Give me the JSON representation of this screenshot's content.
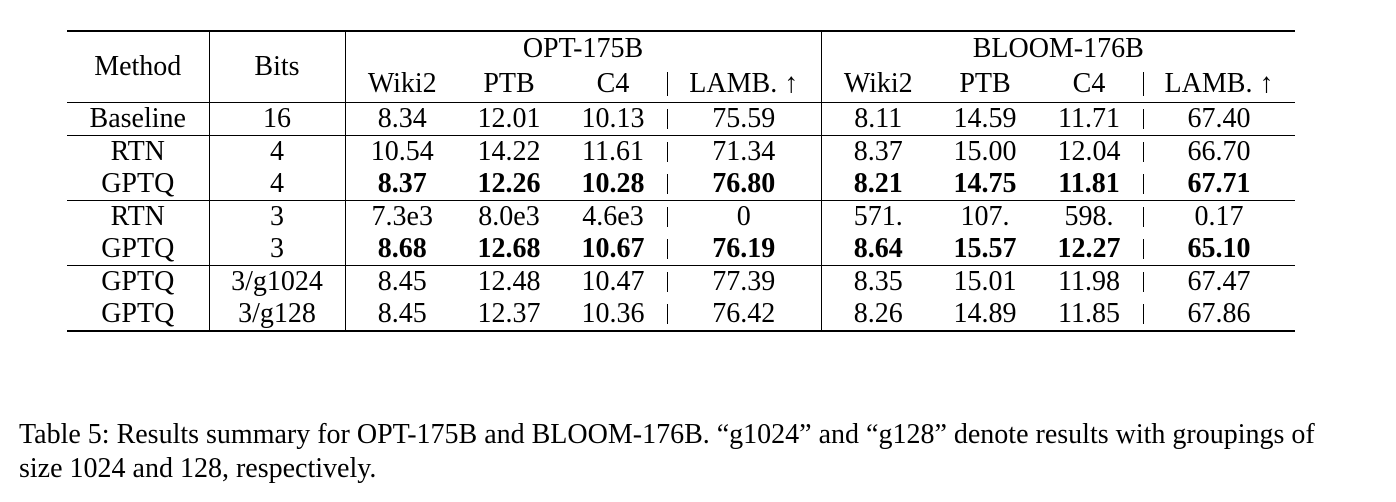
{
  "table": {
    "header": {
      "method": "Method",
      "bits": "Bits",
      "group_opt": "OPT-175B",
      "group_bloom": "BLOOM-176B",
      "cols": [
        "Wiki2",
        "PTB",
        "C4",
        "LAMB. ↑",
        "Wiki2",
        "PTB",
        "C4",
        "LAMB. ↑"
      ]
    },
    "groups": [
      [
        {
          "method": "Baseline",
          "bits": "16",
          "values": [
            "8.34",
            "12.01",
            "10.13",
            "75.59",
            "8.11",
            "14.59",
            "11.71",
            "67.40"
          ]
        }
      ],
      [
        {
          "method": "RTN",
          "bits": "4",
          "values": [
            "10.54",
            "14.22",
            "11.61",
            "71.34",
            "8.37",
            "15.00",
            "12.04",
            "66.70"
          ]
        },
        {
          "method": "GPTQ",
          "bits": "4",
          "values": [
            "8.37",
            "12.26",
            "10.28",
            "76.80",
            "8.21",
            "14.75",
            "11.81",
            "67.71"
          ]
        }
      ],
      [
        {
          "method": "RTN",
          "bits": "3",
          "values": [
            "7.3e3",
            "8.0e3",
            "4.6e3",
            "0",
            "571.",
            "107.",
            "598.",
            "0.17"
          ]
        },
        {
          "method": "GPTQ",
          "bits": "3",
          "values": [
            "8.68",
            "12.68",
            "10.67",
            "76.19",
            "8.64",
            "15.57",
            "12.27",
            "65.10"
          ]
        }
      ],
      [
        {
          "method": "GPTQ",
          "bits": "3/g1024",
          "values": [
            "8.45",
            "12.48",
            "10.47",
            "77.39",
            "8.35",
            "15.01",
            "11.98",
            "67.47"
          ]
        },
        {
          "method": "GPTQ",
          "bits": "3/g128",
          "values": [
            "8.45",
            "12.37",
            "10.36",
            "76.42",
            "8.26",
            "14.89",
            "11.85",
            "67.86"
          ]
        }
      ]
    ]
  },
  "caption": "Table 5: Results summary for OPT-175B and BLOOM-176B. “g1024” and “g128” denote results with groupings of size 1024 and 128, respectively."
}
